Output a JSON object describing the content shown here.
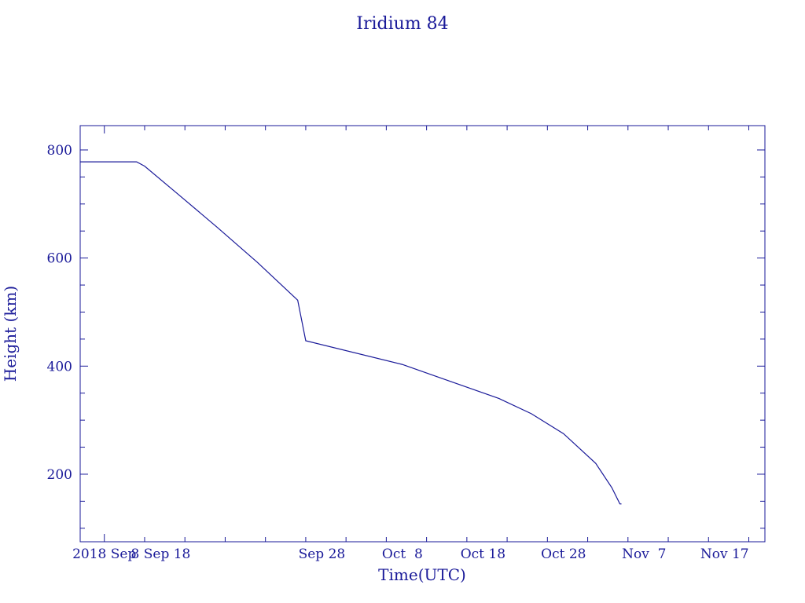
{
  "chart_data": {
    "type": "line",
    "title": "Iridium 84",
    "xlabel": "Time(UTC)",
    "ylabel": "Height (km)",
    "color": "#1a1a99",
    "grid": false,
    "legend": "none",
    "xlim": [
      "2018-08-29",
      "2018-11-22"
    ],
    "ylim": [
      75,
      845
    ],
    "x_ticks": [
      {
        "date": "2018-09-01",
        "label": "2018 Sep"
      },
      {
        "date": "2018-09-08",
        "label": "8 Sep 18"
      },
      {
        "date": "2018-09-28",
        "label": "Sep 28"
      },
      {
        "date": "2018-10-08",
        "label": "Oct  8"
      },
      {
        "date": "2018-10-18",
        "label": "Oct 18"
      },
      {
        "date": "2018-10-28",
        "label": "Oct 28"
      },
      {
        "date": "2018-11-07",
        "label": "Nov  7"
      },
      {
        "date": "2018-11-17",
        "label": "Nov 17"
      }
    ],
    "y_ticks": [
      200,
      400,
      600,
      800
    ],
    "series": [
      {
        "x": [
          "2018-08-29",
          "2018-09-05",
          "2018-09-06",
          "2018-09-10",
          "2018-09-15",
          "2018-09-20",
          "2018-09-25",
          "2018-09-26",
          "2018-10-08",
          "2018-10-12",
          "2018-10-20",
          "2018-10-24",
          "2018-10-28",
          "2018-11-01",
          "2018-11-03",
          "2018-11-04",
          "2018-11-04"
        ],
        "y": [
          778,
          778,
          770,
          720,
          657,
          592,
          522,
          447,
          403,
          382,
          340,
          312,
          275,
          220,
          175,
          145,
          145
        ]
      }
    ]
  }
}
